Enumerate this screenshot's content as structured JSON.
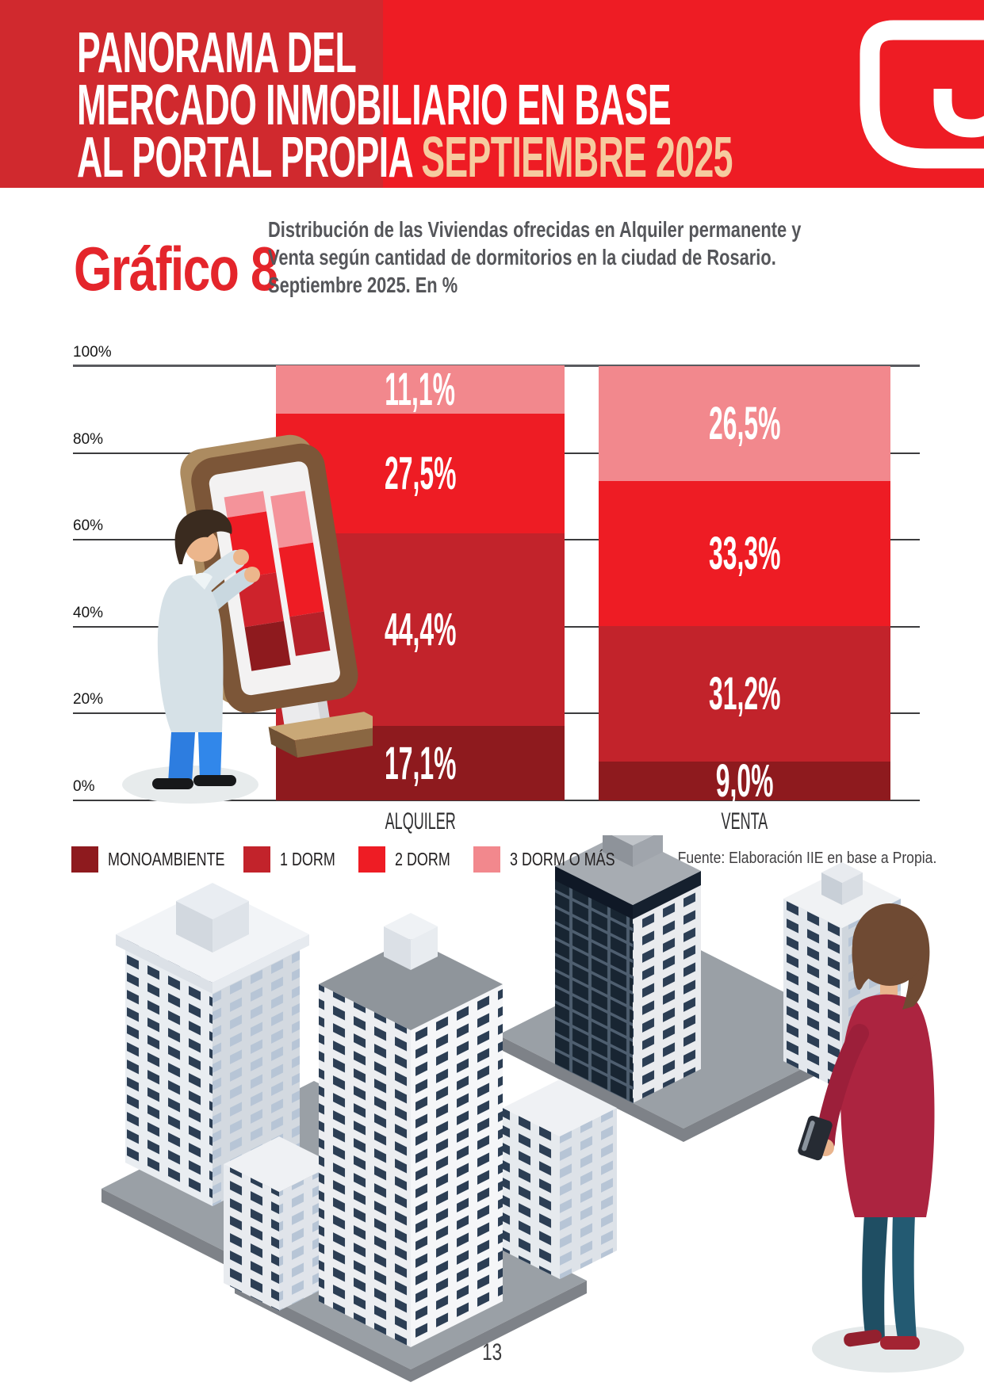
{
  "header": {
    "title_lines": [
      "PANORAMA DEL",
      "MERCADO INMOBILIARIO EN BASE"
    ],
    "title_line3_prefix": "AL PORTAL PROPIA ",
    "title_line3_highlight": "SEPTIEMBRE 2025",
    "bg_left_color": "#D0292E",
    "bg_right_color": "#EE1C24",
    "highlight_color": "#F6CB9F"
  },
  "graphic": {
    "label": "Gráfico 8",
    "subtitle_lines": [
      "Distribución de las Viviendas ofrecidas en Alquiler permanente y",
      "Venta según cantidad de dormitorios en la ciudad de Rosario.",
      "Septiembre 2025. En %"
    ]
  },
  "chart_data": {
    "type": "bar",
    "stacked": true,
    "unit": "%",
    "title": "Distribución de las Viviendas ofrecidas en Alquiler permanente y Venta según cantidad de dormitorios en la ciudad de Rosario. Septiembre 2025. En %",
    "categories": [
      "ALQUILER",
      "VENTA"
    ],
    "series": [
      {
        "name": "MONOAMBIENTE",
        "color": "#8E1A1E",
        "values": [
          17.1,
          9.0
        ],
        "labels": [
          "17,1%",
          "9,0%"
        ]
      },
      {
        "name": "1 DORM",
        "color": "#C2232B",
        "values": [
          44.4,
          31.2
        ],
        "labels": [
          "44,4%",
          "31,2%"
        ]
      },
      {
        "name": "2 DORM",
        "color": "#EE1C24",
        "values": [
          27.5,
          33.3
        ],
        "labels": [
          "27,5%",
          "33,3%"
        ]
      },
      {
        "name": "3 DORM O MÁS",
        "color": "#F2888D",
        "values": [
          11.1,
          26.5
        ],
        "labels": [
          "11,1%",
          "26,5%"
        ]
      }
    ],
    "y_ticks": [
      {
        "label": "0%",
        "value": 0
      },
      {
        "label": "20%",
        "value": 20
      },
      {
        "label": "40%",
        "value": 40
      },
      {
        "label": "60%",
        "value": 60
      },
      {
        "label": "80%",
        "value": 80
      },
      {
        "label": "100%",
        "value": 100
      }
    ],
    "ylim": [
      0,
      100
    ],
    "grid": true,
    "legend_position": "bottom",
    "source": "Fuente: Elaboración IIE en base a Propia."
  },
  "footer": {
    "page_number": "13"
  }
}
